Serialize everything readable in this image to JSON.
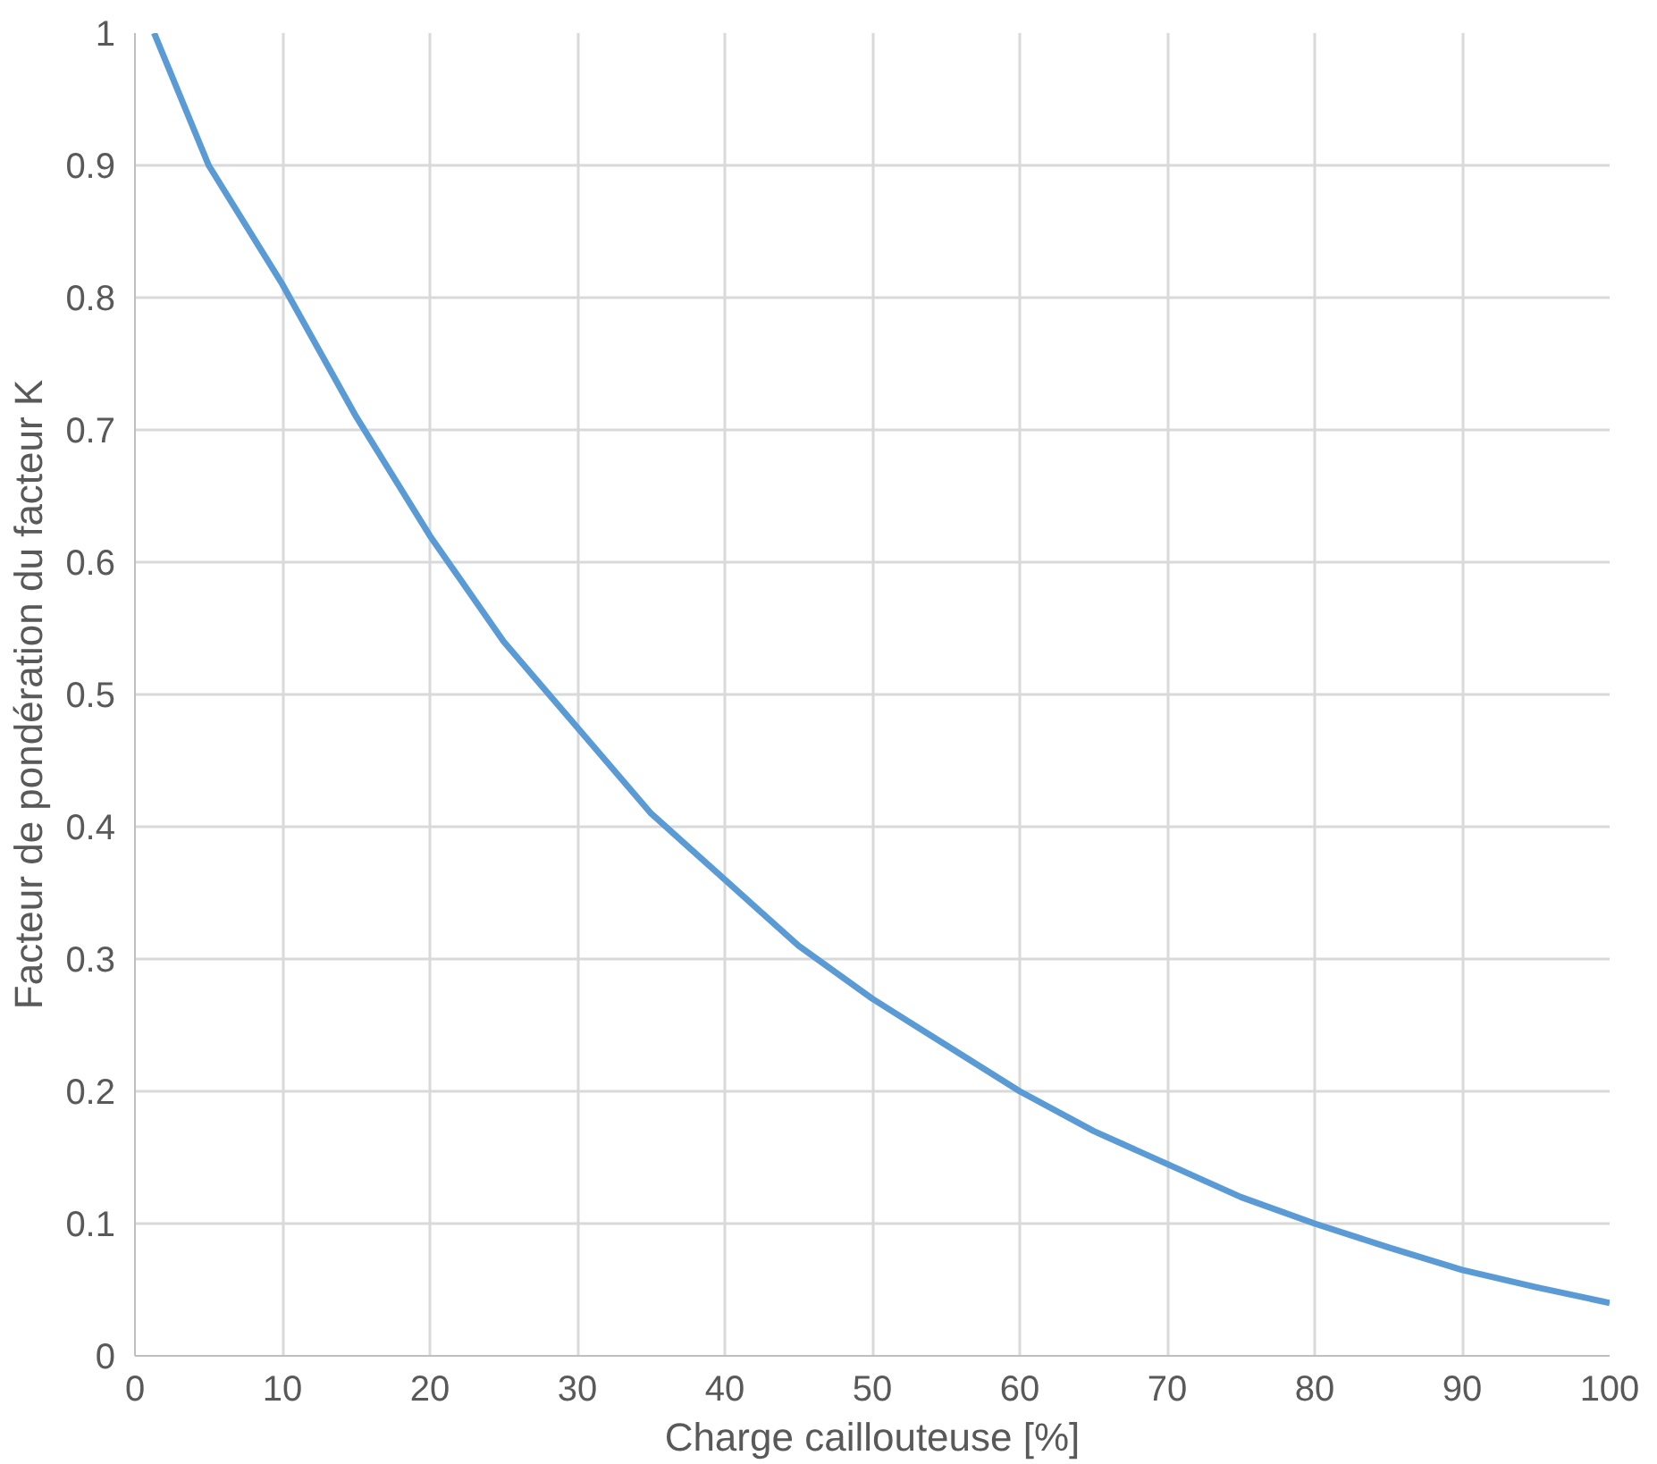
{
  "chart_data": {
    "type": "line",
    "xlabel": "Charge caillouteuse [%]",
    "ylabel": "Facteur de pondération du facteur K",
    "x": [
      1.3,
      5,
      10,
      15,
      20,
      25,
      30,
      35,
      40,
      45,
      50,
      55,
      60,
      65,
      70,
      75,
      80,
      85,
      90,
      95,
      100
    ],
    "series": [
      {
        "color": "#5b9bd5",
        "values": [
          1,
          0.9,
          0.81,
          0.71,
          0.62,
          0.54,
          0.475,
          0.41,
          0.36,
          0.31,
          0.27,
          0.235,
          0.2,
          0.17,
          0.145,
          0.12,
          0.1,
          0.082,
          0.065,
          0.052,
          0.04
        ]
      }
    ],
    "xlim": [
      0,
      100
    ],
    "ylim": [
      0,
      1
    ],
    "xticks": [
      0,
      10,
      20,
      30,
      40,
      50,
      60,
      70,
      80,
      90,
      100
    ],
    "yticks": [
      0,
      {
        "value": 0.1,
        "label": "0.1"
      },
      {
        "value": 0.2,
        "label": "0.2"
      },
      {
        "value": 0.3,
        "label": "0.3"
      },
      {
        "value": 0.4,
        "label": "0.4"
      },
      {
        "value": 0.5,
        "label": "0.5"
      },
      {
        "value": 0.6,
        "label": "0.6"
      },
      {
        "value": 0.7,
        "label": "0.7"
      },
      {
        "value": 0.8,
        "label": "0.8"
      },
      {
        "value": 0.9,
        "label": "0.9"
      },
      1
    ],
    "grid": true,
    "marker": "none",
    "line_style": "solid"
  }
}
